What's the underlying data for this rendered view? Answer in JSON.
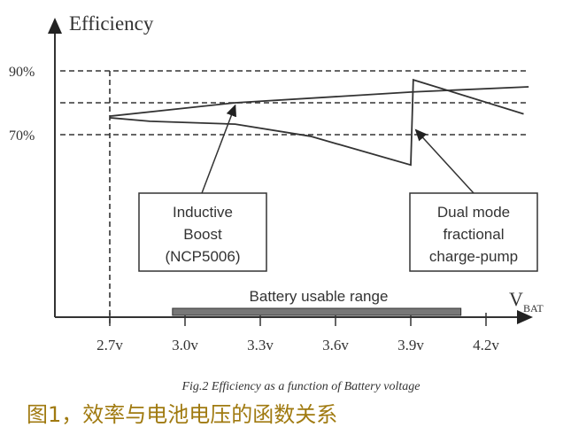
{
  "chart_data": {
    "type": "line",
    "ylabel": "Efficiency",
    "xlabel": "V",
    "xlabel_sub": "BAT",
    "x_ticks": [
      "2.7v",
      "3.0v",
      "3.3v",
      "3.6v",
      "3.9v",
      "4.2v"
    ],
    "x_tick_values": [
      2.7,
      3.0,
      3.3,
      3.6,
      3.9,
      4.2
    ],
    "y_ticks": [
      "90%",
      "70%"
    ],
    "y_tick_values": [
      90,
      70
    ],
    "gridlines_y": [
      90,
      80,
      70
    ],
    "xlim": [
      2.2,
      4.45
    ],
    "ylim": [
      50,
      100
    ],
    "series": [
      {
        "label": "Inductive Boost (NCP5006)",
        "x": [
          2.7,
          3.2,
          3.91,
          4.37
        ],
        "y": [
          75.8,
          80,
          83.4,
          85
        ]
      },
      {
        "label": "Dual mode fractional charge-pump",
        "x": [
          2.7,
          2.86,
          3.2,
          3.5,
          3.9,
          3.91,
          4.35
        ],
        "y": [
          75.3,
          74.2,
          73.3,
          69.5,
          60.5,
          87.2,
          76.5
        ]
      }
    ],
    "annotations": [
      {
        "lines": [
          "Inductive",
          "Boost",
          "(NCP5006)"
        ]
      },
      {
        "lines": [
          "Dual mode",
          "fractional",
          "charge-pump"
        ]
      }
    ],
    "range_bar": {
      "label": "Battery usable range",
      "from": 2.95,
      "to": 4.1
    },
    "caption": "Fig.2  Efficiency as a function of Battery voltage",
    "caption_cn": "图1，效率与电池电压的函数关系",
    "colors": {
      "line": "#333333",
      "caption_cn": "#a07a10"
    }
  }
}
